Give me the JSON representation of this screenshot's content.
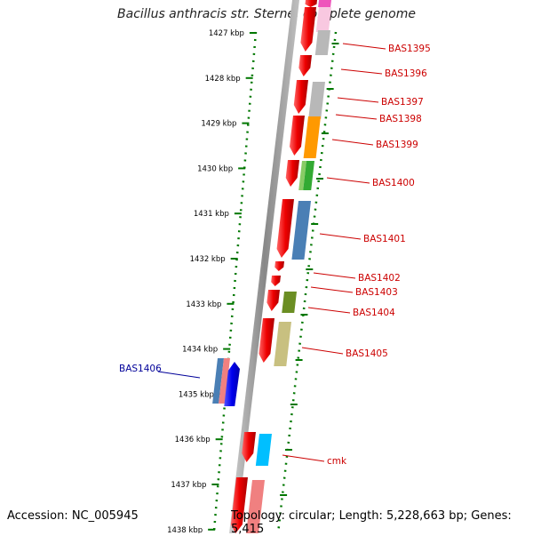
{
  "title": "Bacillus anthracis str. Sterne, complete genome",
  "footer": {
    "accession": "Accession: NC_005945",
    "summary": "Topology: circular; Length: 5,228,663 bp; Genes: 5,415"
  },
  "axis": {
    "ticks": [
      "1427 kbp",
      "1428 kbp",
      "1429 kbp",
      "1430 kbp",
      "1431 kbp",
      "1432 kbp",
      "1433 kbp",
      "1434 kbp",
      "1435 kbp",
      "1436 kbp",
      "1437 kbp",
      "1438 kbp"
    ]
  },
  "gene_labels": [
    {
      "id": "bas1395",
      "text": "BAS1395",
      "color": "#cc0000"
    },
    {
      "id": "bas1396",
      "text": "BAS1396",
      "color": "#cc0000"
    },
    {
      "id": "bas1397",
      "text": "BAS1397",
      "color": "#cc0000"
    },
    {
      "id": "bas1398",
      "text": "BAS1398",
      "color": "#cc0000"
    },
    {
      "id": "bas1399",
      "text": "BAS1399",
      "color": "#cc0000"
    },
    {
      "id": "bas1400",
      "text": "BAS1400",
      "color": "#cc0000"
    },
    {
      "id": "bas1401",
      "text": "BAS1401",
      "color": "#cc0000"
    },
    {
      "id": "bas1402",
      "text": "BAS1402",
      "color": "#cc0000"
    },
    {
      "id": "bas1403",
      "text": "BAS1403",
      "color": "#cc0000"
    },
    {
      "id": "bas1404",
      "text": "BAS1404",
      "color": "#cc0000"
    },
    {
      "id": "bas1405",
      "text": "BAS1405",
      "color": "#cc0000"
    },
    {
      "id": "bas1406",
      "text": "BAS1406",
      "color": "#000099"
    },
    {
      "id": "cmk",
      "text": "cmk",
      "color": "#cc0000"
    }
  ],
  "colors": {
    "gene_arrow": "#ee0000",
    "reverse_gene": "#0000ee",
    "axis_dots": "#007700",
    "backbone": "#888888",
    "cog_gray": "#b8b8b8",
    "cog_orange": "#ff9900",
    "cog_green": "#33aa33",
    "cog_steelblue": "#4a7fb5",
    "cog_olive": "#6b8e23",
    "cog_khaki": "#c8c080",
    "cog_pink": "#f08080",
    "cog_cyan": "#00bfff",
    "cog_magenta": "#ee55bb"
  }
}
